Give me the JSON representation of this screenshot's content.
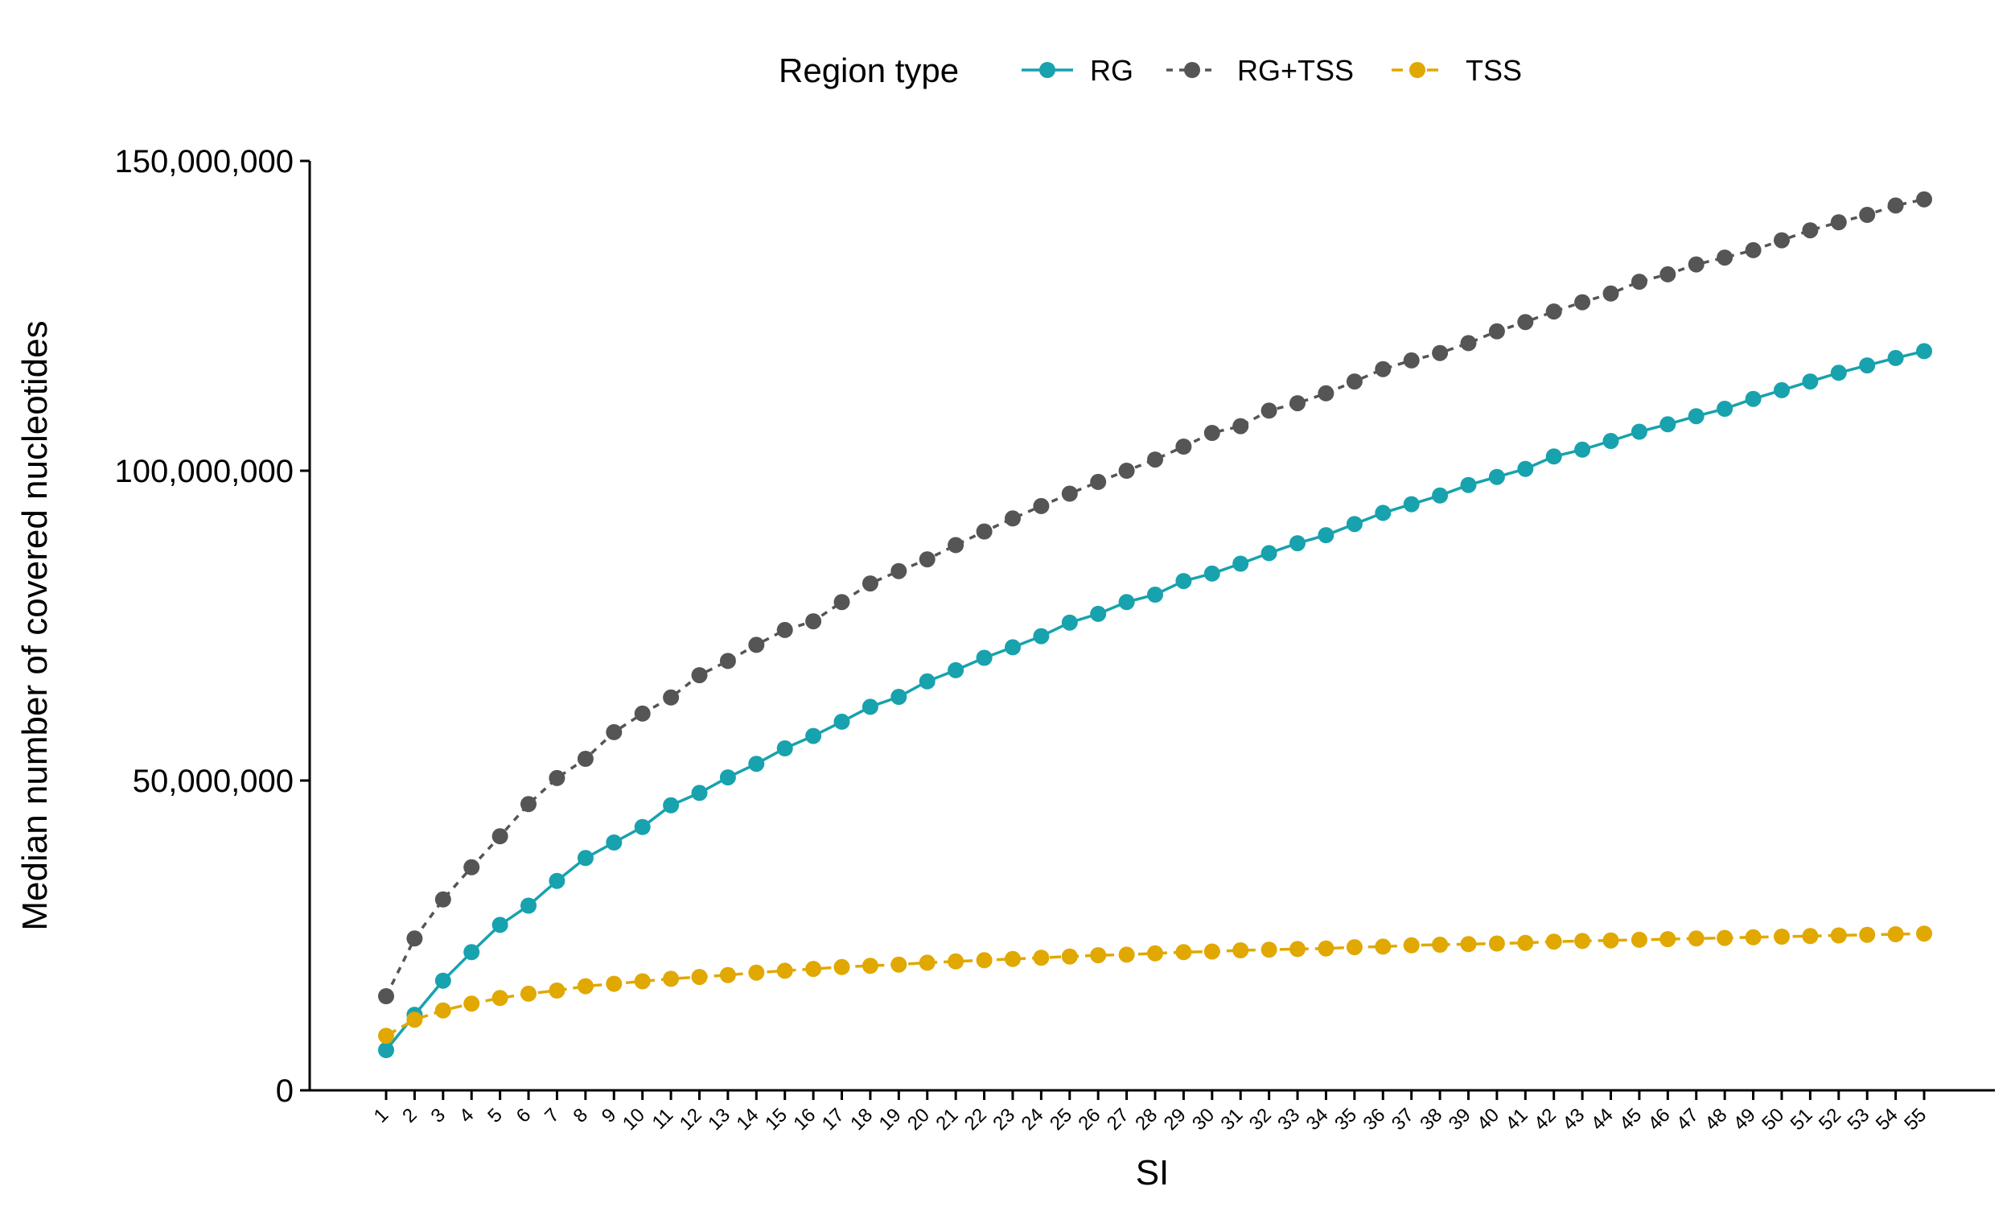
{
  "chart_data": {
    "type": "line",
    "xlabel": "SI",
    "ylabel": "Median number of covered nucleotides",
    "legend": {
      "title": "Region type",
      "position": "top"
    },
    "grid": false,
    "xlim": [
      1,
      55
    ],
    "ylim": [
      0,
      150000000
    ],
    "yticks": [
      0,
      50000000,
      100000000,
      150000000
    ],
    "ytick_labels": [
      "0",
      "50,000,000",
      "100,000,000",
      "150,000,000"
    ],
    "x": [
      1,
      2,
      3,
      4,
      5,
      6,
      7,
      8,
      9,
      10,
      11,
      12,
      13,
      14,
      15,
      16,
      17,
      18,
      19,
      20,
      21,
      22,
      23,
      24,
      25,
      26,
      27,
      28,
      29,
      30,
      31,
      32,
      33,
      34,
      35,
      36,
      37,
      38,
      39,
      40,
      41,
      42,
      43,
      44,
      45,
      46,
      47,
      48,
      49,
      50,
      51,
      52,
      53,
      54,
      55
    ],
    "series": [
      {
        "name": "RG",
        "color": "#17A2AE",
        "line_style": "solid",
        "values": [
          6500000,
          12200000,
          17700000,
          22300000,
          26700000,
          29800000,
          33800000,
          37500000,
          40000000,
          42500000,
          46000000,
          48000000,
          50500000,
          52700000,
          55200000,
          57200000,
          59500000,
          61900000,
          63500000,
          66000000,
          67800000,
          69800000,
          71500000,
          73300000,
          75500000,
          76900000,
          78800000,
          80000000,
          82200000,
          83400000,
          85000000,
          86700000,
          88300000,
          89600000,
          91400000,
          93200000,
          94600000,
          96000000,
          97700000,
          99000000,
          100300000,
          102300000,
          103400000,
          104800000,
          106300000,
          107500000,
          108800000,
          110000000,
          111600000,
          113000000,
          114400000,
          115800000,
          117000000,
          118200000,
          119300000
        ]
      },
      {
        "name": "RG+TSS",
        "color": "#555555",
        "line_style": "dashed",
        "values": [
          15200000,
          24500000,
          30800000,
          36000000,
          41000000,
          46200000,
          50400000,
          53500000,
          57800000,
          60800000,
          63400000,
          67000000,
          69300000,
          71900000,
          74300000,
          75700000,
          78800000,
          81800000,
          83800000,
          85700000,
          88000000,
          90200000,
          92300000,
          94300000,
          96300000,
          98200000,
          100000000,
          101800000,
          103900000,
          106100000,
          107200000,
          109700000,
          110900000,
          112500000,
          114400000,
          116400000,
          117800000,
          119000000,
          120600000,
          122500000,
          124000000,
          125700000,
          127200000,
          128600000,
          130500000,
          131700000,
          133300000,
          134400000,
          135600000,
          137200000,
          138800000,
          140100000,
          141300000,
          142800000,
          143800000
        ]
      },
      {
        "name": "TSS",
        "color": "#E0A800",
        "line_style": "dashed",
        "values": [
          8800000,
          11400000,
          12900000,
          14000000,
          14900000,
          15600000,
          16100000,
          16800000,
          17200000,
          17600000,
          18000000,
          18300000,
          18600000,
          19000000,
          19300000,
          19600000,
          19900000,
          20100000,
          20300000,
          20600000,
          20800000,
          21000000,
          21200000,
          21400000,
          21600000,
          21800000,
          21900000,
          22100000,
          22300000,
          22400000,
          22600000,
          22700000,
          22800000,
          22900000,
          23100000,
          23200000,
          23400000,
          23500000,
          23600000,
          23700000,
          23800000,
          24000000,
          24100000,
          24200000,
          24300000,
          24400000,
          24500000,
          24600000,
          24700000,
          24800000,
          24900000,
          25000000,
          25100000,
          25200000,
          25300000
        ]
      }
    ]
  }
}
